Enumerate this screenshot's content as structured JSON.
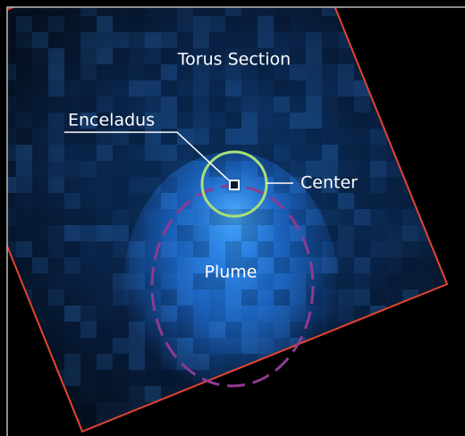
{
  "labels": {
    "torus": "Torus Section",
    "enceladus": "Enceladus",
    "center": "Center",
    "plume": "Plume"
  }
}
